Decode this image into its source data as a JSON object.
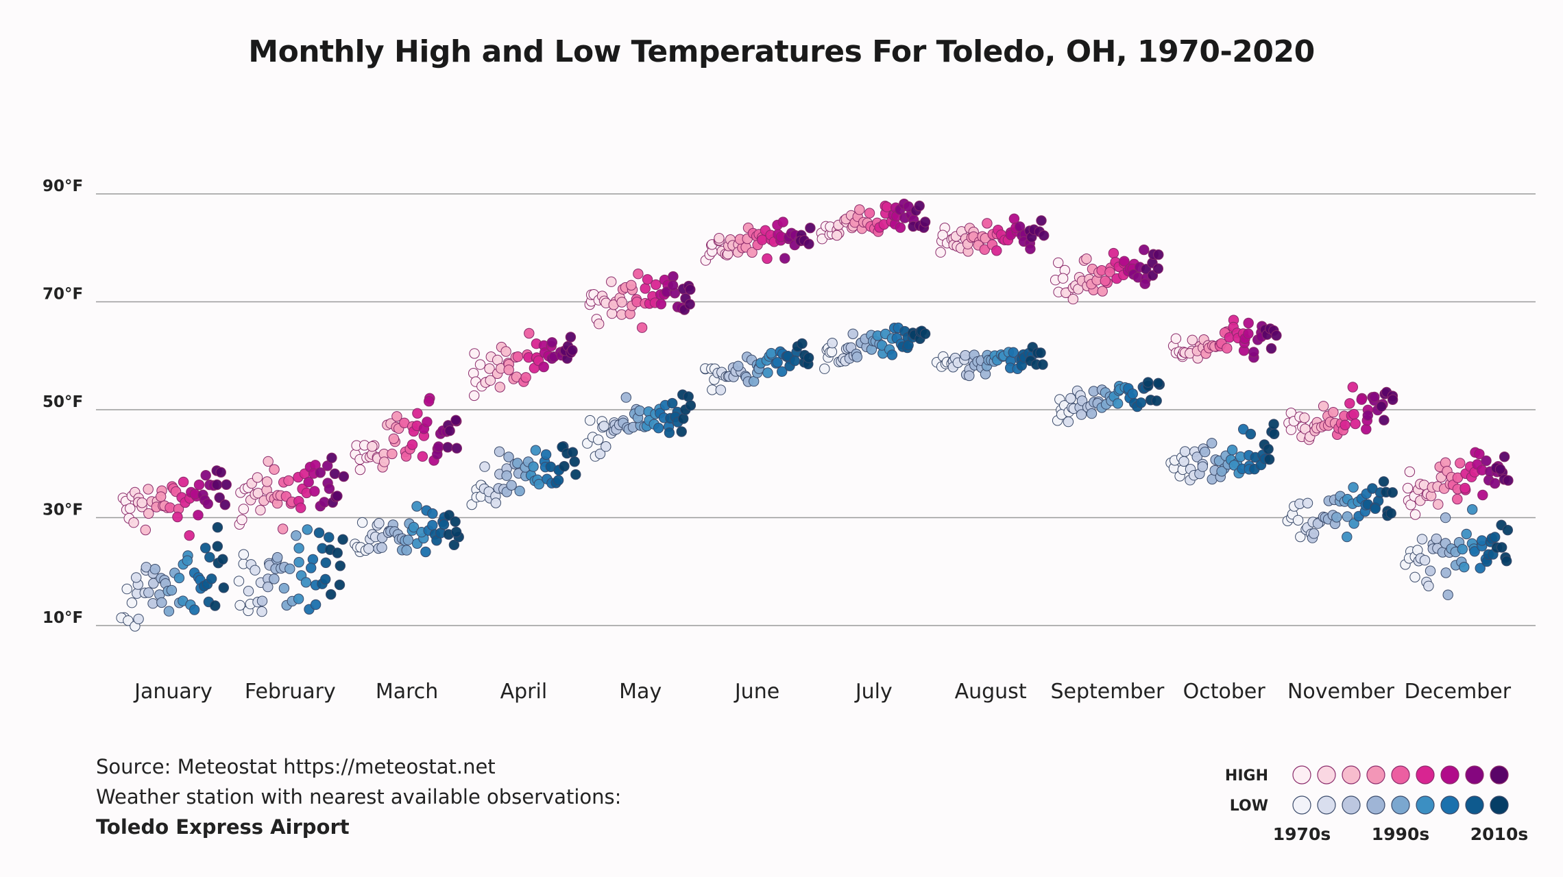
{
  "chart_data": {
    "type": "scatter",
    "title": "Monthly High and Low Temperatures For Toledo, OH, 1970-2020",
    "categories": [
      "January",
      "February",
      "March",
      "April",
      "May",
      "June",
      "July",
      "August",
      "September",
      "October",
      "November",
      "December"
    ],
    "y_ticks": [
      "90°F",
      "70°F",
      "50°F",
      "30°F",
      "10°F"
    ],
    "y_tick_values": [
      90,
      70,
      50,
      30,
      10
    ],
    "ylim": [
      0,
      92
    ],
    "grid": true,
    "x_axis": "months, each month's years spread left to right from 1970 to 2020",
    "series": [
      {
        "name": "HIGH",
        "values": [
          33,
          35,
          44,
          59,
          71,
          81,
          85,
          82,
          75,
          62,
          48,
          37
        ]
      },
      {
        "name": "LOW",
        "values": [
          18,
          19,
          27,
          38,
          48,
          58,
          62,
          59,
          52,
          41,
          31,
          24
        ]
      }
    ],
    "legend": {
      "position": "bottom-right",
      "rows": [
        "HIGH",
        "LOW"
      ],
      "decade_labels": [
        "1970s",
        "1990s",
        "2010s"
      ],
      "high_colors": [
        "#fdeff4",
        "#fad7e2",
        "#f7bccd",
        "#f396b7",
        "#ec5fa1",
        "#d82591",
        "#b10b8a",
        "#85067f",
        "#5a0468"
      ],
      "low_colors": [
        "#f2f3f9",
        "#d9deee",
        "#bcc7e0",
        "#9fb5d6",
        "#7ba7cf",
        "#3c8fc2",
        "#1b71ad",
        "#0e5a8e",
        "#063e66"
      ]
    }
  },
  "footer": {
    "source": "Source: Meteostat https://meteostat.net",
    "station_note": "Weather station with nearest available observations:",
    "station_name": "Toledo Express Airport"
  }
}
